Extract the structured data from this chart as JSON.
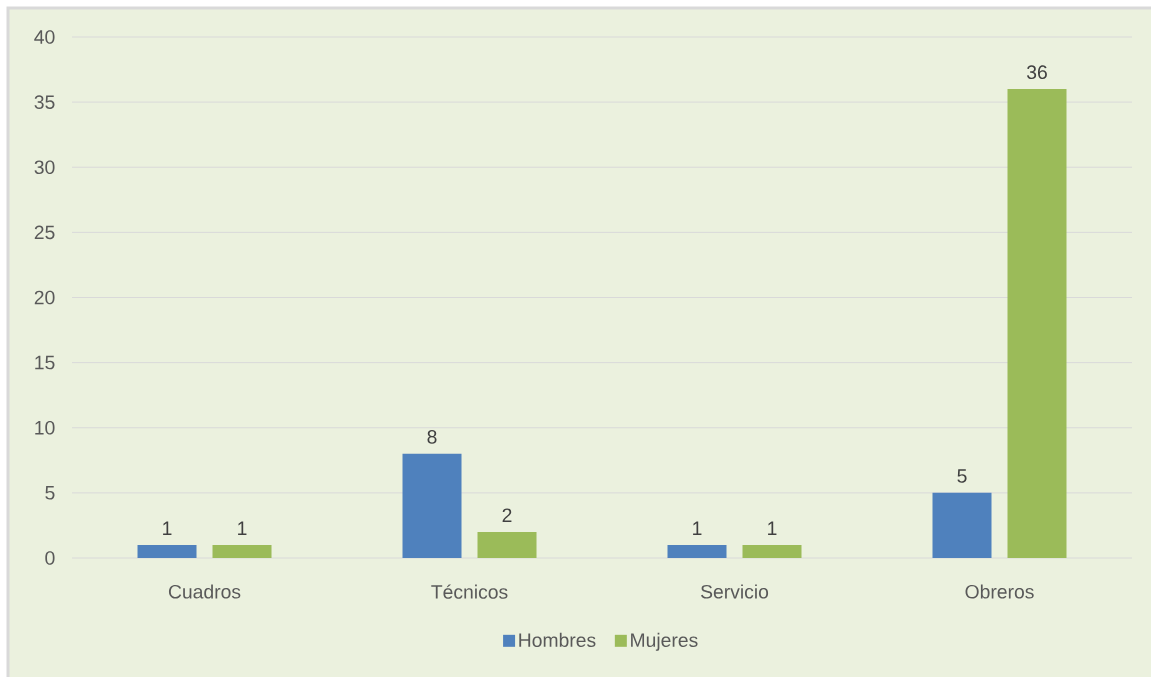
{
  "chart_data": {
    "type": "bar",
    "categories": [
      "Cuadros",
      "Técnicos",
      "Servicio",
      "Obreros"
    ],
    "series": [
      {
        "name": "Hombres",
        "color": "#4f81bd",
        "values": [
          1,
          8,
          1,
          5
        ]
      },
      {
        "name": "Mujeres",
        "color": "#9bbb59",
        "values": [
          1,
          2,
          1,
          36
        ]
      }
    ],
    "ylim": [
      0,
      40
    ],
    "yticks": [
      0,
      5,
      10,
      15,
      20,
      25,
      30,
      35,
      40
    ],
    "grid": "y",
    "legend": "bottom",
    "data_labels": true
  }
}
